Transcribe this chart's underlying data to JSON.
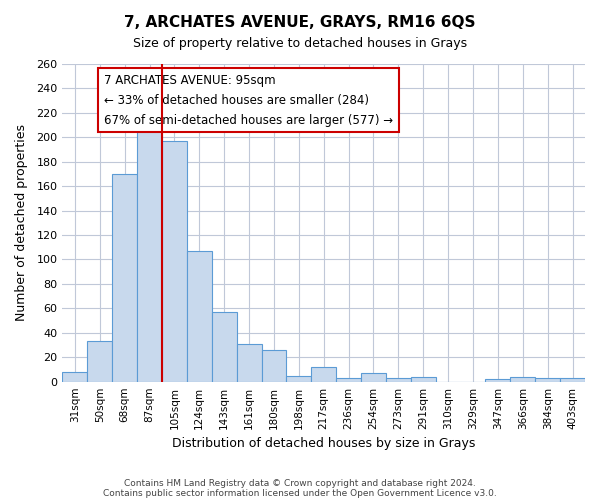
{
  "title": "7, ARCHATES AVENUE, GRAYS, RM16 6QS",
  "subtitle": "Size of property relative to detached houses in Grays",
  "xlabel": "Distribution of detached houses by size in Grays",
  "ylabel": "Number of detached properties",
  "categories": [
    "31sqm",
    "50sqm",
    "68sqm",
    "87sqm",
    "105sqm",
    "124sqm",
    "143sqm",
    "161sqm",
    "180sqm",
    "198sqm",
    "217sqm",
    "236sqm",
    "254sqm",
    "273sqm",
    "291sqm",
    "310sqm",
    "329sqm",
    "347sqm",
    "366sqm",
    "384sqm",
    "403sqm"
  ],
  "values": [
    8,
    33,
    170,
    205,
    197,
    107,
    57,
    31,
    26,
    5,
    12,
    3,
    7,
    3,
    4,
    0,
    0,
    2,
    4,
    3,
    3
  ],
  "bar_color": "#c8d9ed",
  "bar_edge_color": "#5b9bd5",
  "bar_width": 1.0,
  "vline_x": 3.5,
  "vline_color": "#cc0000",
  "ylim": [
    0,
    260
  ],
  "yticks": [
    0,
    20,
    40,
    60,
    80,
    100,
    120,
    140,
    160,
    180,
    200,
    220,
    240,
    260
  ],
  "annotation_title": "7 ARCHATES AVENUE: 95sqm",
  "annotation_line1": "← 33% of detached houses are smaller (284)",
  "annotation_line2": "67% of semi-detached houses are larger (577) →",
  "annotation_box_color": "#ffffff",
  "annotation_box_edge": "#cc0000",
  "grid_color": "#c0c8d8",
  "background_color": "#ffffff",
  "footer1": "Contains HM Land Registry data © Crown copyright and database right 2024.",
  "footer2": "Contains public sector information licensed under the Open Government Licence v3.0."
}
